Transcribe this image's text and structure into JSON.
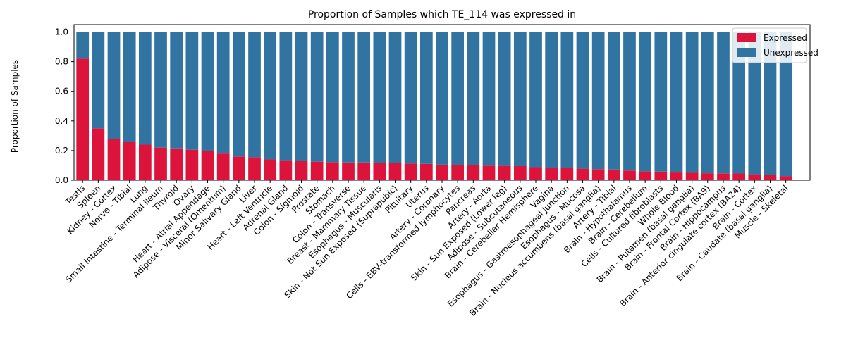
{
  "chart_data": {
    "type": "bar",
    "stacked": true,
    "title": "Proportion of Samples which TE_114 was expressed in",
    "xlabel": "",
    "ylabel": "Proportion of Samples",
    "ylim": [
      0,
      1.05
    ],
    "yticks": [
      "0.0",
      "0.2",
      "0.4",
      "0.6",
      "0.8",
      "1.0"
    ],
    "grid": false,
    "legend_position": "top-right",
    "categories": [
      "Testis",
      "Spleen",
      "Kidney - Cortex",
      "Nerve - Tibial",
      "Lung",
      "Small Intestine - Terminal Ileum",
      "Thyroid",
      "Ovary",
      "Heart - Atrial Appendage",
      "Adipose - Visceral (Omentum)",
      "Minor Salivary Gland",
      "Liver",
      "Heart - Left Ventricle",
      "Adrenal Gland",
      "Colon - Sigmoid",
      "Prostate",
      "Stomach",
      "Colon - Transverse",
      "Breast - Mammary Tissue",
      "Esophagus - Muscularis",
      "Skin - Not Sun Exposed (Suprapubic)",
      "Pituitary",
      "Uterus",
      "Artery - Coronary",
      "Cells - EBV-transformed lymphocytes",
      "Pancreas",
      "Artery - Aorta",
      "Skin - Sun Exposed (Lower leg)",
      "Adipose - Subcutaneous",
      "Brain - Cerebellar Hemisphere",
      "Vagina",
      "Esophagus - Gastroesophageal Junction",
      "Esophagus - Mucosa",
      "Brain - Nucleus accumbens (basal ganglia)",
      "Artery - Tibial",
      "Brain - Hypothalamus",
      "Brain - Cerebellum",
      "Cells - Cultured fibroblasts",
      "Whole Blood",
      "Brain - Putamen (basal ganglia)",
      "Brain - Frontal Cortex (BA9)",
      "Brain - Hippocampus",
      "Brain - Anterior cingulate cortex (BA24)",
      "Brain - Cortex",
      "Brain - Caudate (basal ganglia)",
      "Muscle - Skeletal"
    ],
    "series": [
      {
        "name": "Expressed",
        "color": "#dc143c",
        "values": [
          0.82,
          0.35,
          0.28,
          0.26,
          0.24,
          0.22,
          0.215,
          0.205,
          0.195,
          0.18,
          0.16,
          0.155,
          0.14,
          0.135,
          0.13,
          0.125,
          0.122,
          0.12,
          0.12,
          0.115,
          0.115,
          0.112,
          0.11,
          0.105,
          0.1,
          0.1,
          0.098,
          0.097,
          0.095,
          0.088,
          0.083,
          0.082,
          0.078,
          0.075,
          0.072,
          0.065,
          0.06,
          0.058,
          0.052,
          0.05,
          0.047,
          0.046,
          0.045,
          0.04,
          0.038,
          0.028
        ]
      },
      {
        "name": "Unexpressed",
        "color": "#3274a1",
        "values": [
          0.18,
          0.65,
          0.72,
          0.74,
          0.76,
          0.78,
          0.785,
          0.795,
          0.805,
          0.82,
          0.84,
          0.845,
          0.86,
          0.865,
          0.87,
          0.875,
          0.878,
          0.88,
          0.88,
          0.885,
          0.885,
          0.888,
          0.89,
          0.895,
          0.9,
          0.9,
          0.902,
          0.903,
          0.905,
          0.912,
          0.917,
          0.918,
          0.922,
          0.925,
          0.928,
          0.935,
          0.94,
          0.942,
          0.948,
          0.95,
          0.953,
          0.954,
          0.955,
          0.96,
          0.962,
          0.972
        ]
      }
    ]
  }
}
